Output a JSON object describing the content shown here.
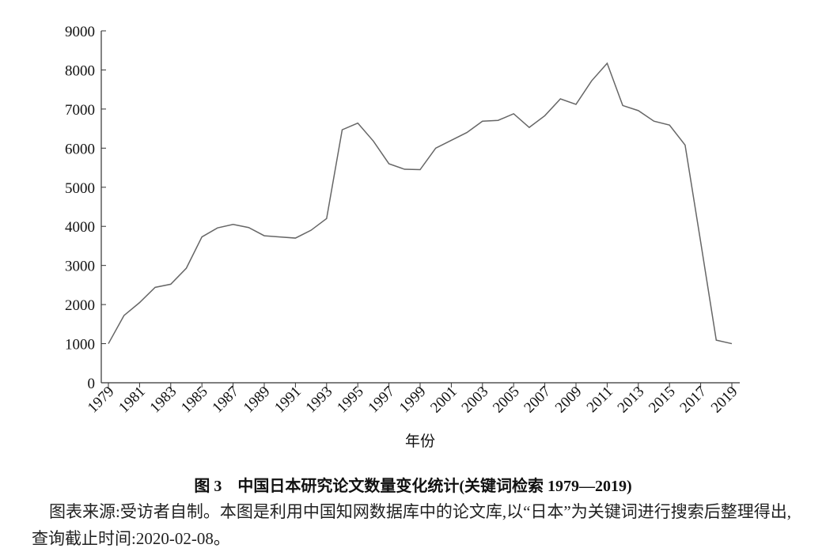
{
  "chart_data": {
    "type": "line",
    "categories": [
      "1979",
      null,
      "1981",
      null,
      "1983",
      null,
      "1985",
      null,
      "1987",
      null,
      "1989",
      null,
      "1991",
      null,
      "1993",
      null,
      "1995",
      null,
      "1997",
      null,
      "1999",
      null,
      "2001",
      null,
      "2003",
      null,
      "2005",
      null,
      "2007",
      null,
      "2009",
      null,
      "2011",
      null,
      "2013",
      null,
      "2015",
      null,
      "2017",
      null,
      "2019"
    ],
    "values": [
      1000,
      1720,
      2050,
      2440,
      2520,
      2930,
      3730,
      3960,
      4050,
      3970,
      3760,
      3730,
      3700,
      3900,
      4200,
      6470,
      6640,
      6180,
      5600,
      5460,
      5450,
      6000,
      6200,
      6400,
      6690,
      6710,
      6880,
      6530,
      6830,
      7260,
      7120,
      7720,
      8170,
      7090,
      6960,
      6690,
      6590,
      6080,
      3600,
      1090,
      1000
    ],
    "color": "#666666",
    "ylim": [
      0,
      9000
    ],
    "yticks": [
      0,
      1000,
      2000,
      3000,
      4000,
      5000,
      6000,
      7000,
      8000,
      9000
    ],
    "xlabel": "年份",
    "caption": "图 3　中国日本研究论文数量变化统计(关键词检索 1979—2019)",
    "note": "图表来源:受访者自制。本图是利用中国知网数据库中的论文库,以“日本”为关键词进行搜索后整理得出,查询截止时间:2020-02-08。"
  }
}
